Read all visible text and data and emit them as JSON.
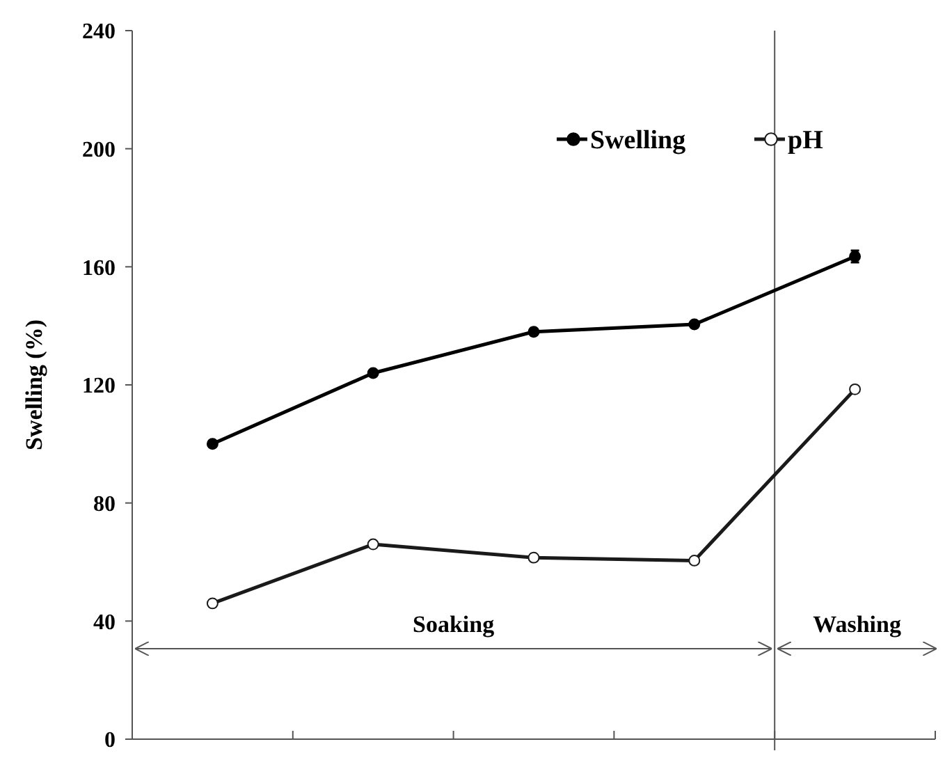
{
  "chart_data": {
    "type": "line",
    "ylabel": "Swelling (%)",
    "categories": [
      null,
      null,
      null,
      null,
      null
    ],
    "ylim": [
      0,
      240
    ],
    "yticks": [
      0,
      40,
      80,
      120,
      160,
      200,
      240
    ],
    "legend": "top right",
    "marker": "circle",
    "grid": false,
    "series": [
      {
        "name": "Swelling",
        "color": "#000000",
        "values": [
          100,
          124,
          138,
          140.5,
          163.5
        ],
        "errors": [
          null,
          null,
          null,
          null,
          2
        ]
      },
      {
        "name": "pH",
        "color": "#1a1a1a",
        "values": [
          46,
          66,
          61.5,
          60.5,
          118.5
        ]
      }
    ],
    "annotations": [
      "Soaking",
      "Washing"
    ]
  }
}
